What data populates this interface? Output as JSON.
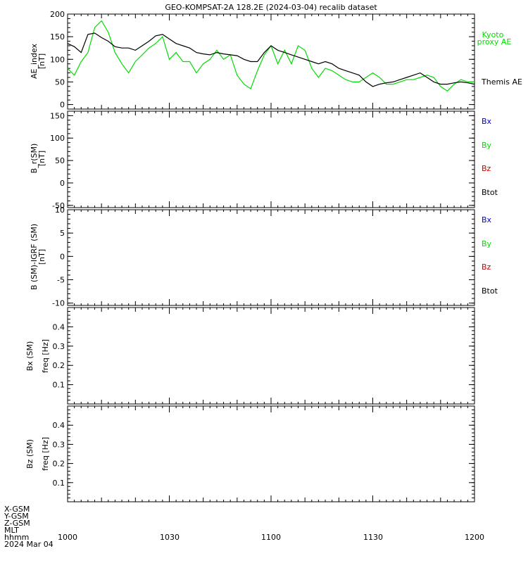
{
  "title": "GEO-KOMPSAT-2A 128.2E (2024-03-04) recalib dataset",
  "colors": {
    "kyoto": "#00dd00",
    "themis": "#000000",
    "bx": "#0000cc",
    "by": "#00dd00",
    "bz": "#cc0000",
    "btot": "#000000",
    "axis": "#000000"
  },
  "footer": {
    "row_labels": [
      "X-GSM",
      "Y-GSM",
      "Z-GSM",
      "MLT",
      "hhmm",
      "2024 Mar 04"
    ],
    "x_ticks": [
      "1000",
      "1030",
      "1100",
      "1130",
      "1200"
    ]
  },
  "chart_data": [
    {
      "type": "line",
      "panel": "ae",
      "ylabel": "AE_index",
      "yunit": "[nT]",
      "ylim": [
        -10,
        200
      ],
      "yticks": [
        0,
        50,
        100,
        150,
        200
      ],
      "xlim": [
        0,
        120
      ],
      "legend": [
        "Kyoto",
        "proxy AE",
        "Themis AE"
      ],
      "series": [
        {
          "name": "Kyoto proxy AE",
          "color": "#00dd00",
          "x": [
            0,
            2,
            4,
            6,
            8,
            10,
            12,
            14,
            16,
            18,
            20,
            22,
            24,
            26,
            28,
            30,
            32,
            34,
            36,
            38,
            40,
            42,
            44,
            46,
            48,
            50,
            52,
            54,
            56,
            58,
            60,
            62,
            64,
            66,
            68,
            70,
            72,
            74,
            76,
            78,
            80,
            82,
            84,
            86,
            88,
            90,
            92,
            94,
            96,
            98,
            100,
            102,
            104,
            106,
            108,
            110,
            112,
            114,
            116,
            118,
            120
          ],
          "values": [
            80,
            65,
            95,
            115,
            170,
            185,
            160,
            115,
            90,
            70,
            95,
            110,
            125,
            135,
            150,
            100,
            115,
            95,
            95,
            70,
            90,
            100,
            120,
            100,
            110,
            65,
            45,
            35,
            75,
            110,
            130,
            90,
            120,
            90,
            130,
            120,
            80,
            60,
            80,
            75,
            65,
            55,
            50,
            50,
            60,
            70,
            60,
            45,
            45,
            50,
            55,
            55,
            60,
            65,
            60,
            40,
            30,
            45,
            55,
            50,
            50
          ]
        },
        {
          "name": "Themis AE",
          "color": "#000000",
          "x": [
            0,
            2,
            4,
            6,
            8,
            10,
            12,
            14,
            16,
            18,
            20,
            22,
            24,
            26,
            28,
            30,
            32,
            34,
            36,
            38,
            40,
            42,
            44,
            46,
            48,
            50,
            52,
            54,
            56,
            58,
            60,
            62,
            64,
            66,
            68,
            70,
            72,
            74,
            76,
            78,
            80,
            82,
            84,
            86,
            88,
            90,
            92,
            94,
            96,
            98,
            100,
            102,
            104,
            106,
            108,
            110,
            112,
            114,
            116,
            118,
            120
          ],
          "values": [
            135,
            128,
            115,
            155,
            158,
            148,
            140,
            128,
            125,
            125,
            120,
            130,
            140,
            152,
            155,
            145,
            135,
            130,
            125,
            115,
            112,
            110,
            115,
            112,
            110,
            108,
            100,
            95,
            95,
            115,
            130,
            120,
            115,
            110,
            105,
            100,
            95,
            90,
            95,
            90,
            80,
            75,
            70,
            65,
            50,
            40,
            45,
            48,
            50,
            55,
            60,
            65,
            70,
            60,
            50,
            45,
            45,
            48,
            50,
            48,
            45
          ]
        }
      ]
    },
    {
      "type": "line",
      "panel": "b",
      "ylabel": "B_r(SM)",
      "yunit": "[nT]",
      "ylim": [
        -55,
        160
      ],
      "yticks": [
        -50,
        0,
        50,
        100,
        150
      ],
      "legend": [
        "Bx",
        "By",
        "Bz",
        "Btot"
      ],
      "series": []
    },
    {
      "type": "line",
      "panel": "bdiff",
      "ylabel": "B (SM)-IGRF (SM)",
      "yunit": "[nT]",
      "ylim": [
        -10.5,
        10
      ],
      "yticks": [
        -10,
        -5,
        0,
        5,
        10
      ],
      "legend": [
        "Bx",
        "By",
        "Bz",
        "Btot"
      ],
      "series": []
    },
    {
      "type": "heatmap",
      "panel": "bxfreq",
      "ylabel": "Bx (SM)",
      "yunit": "freq [Hz]",
      "ylim": [
        0,
        0.5
      ],
      "yticks": [
        0.1,
        0.2,
        0.3,
        0.4
      ],
      "series": []
    },
    {
      "type": "heatmap",
      "panel": "bzfreq",
      "ylabel": "Bz (SM)",
      "yunit": "freq [Hz]",
      "ylim": [
        0,
        0.5
      ],
      "yticks": [
        0.1,
        0.2,
        0.3,
        0.4
      ],
      "series": []
    }
  ]
}
